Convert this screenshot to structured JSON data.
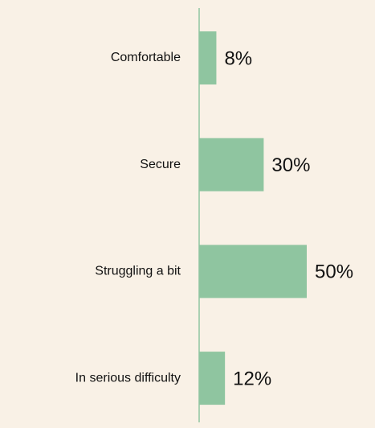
{
  "chart_data": {
    "type": "barh",
    "categories": [
      "Comfortable",
      "Secure",
      "Struggling a bit",
      "In serious difficulty"
    ],
    "values": [
      8,
      30,
      50,
      12
    ],
    "value_labels": [
      "8%",
      "30%",
      "50%",
      "12%"
    ],
    "color": "#8fc5a0"
  }
}
